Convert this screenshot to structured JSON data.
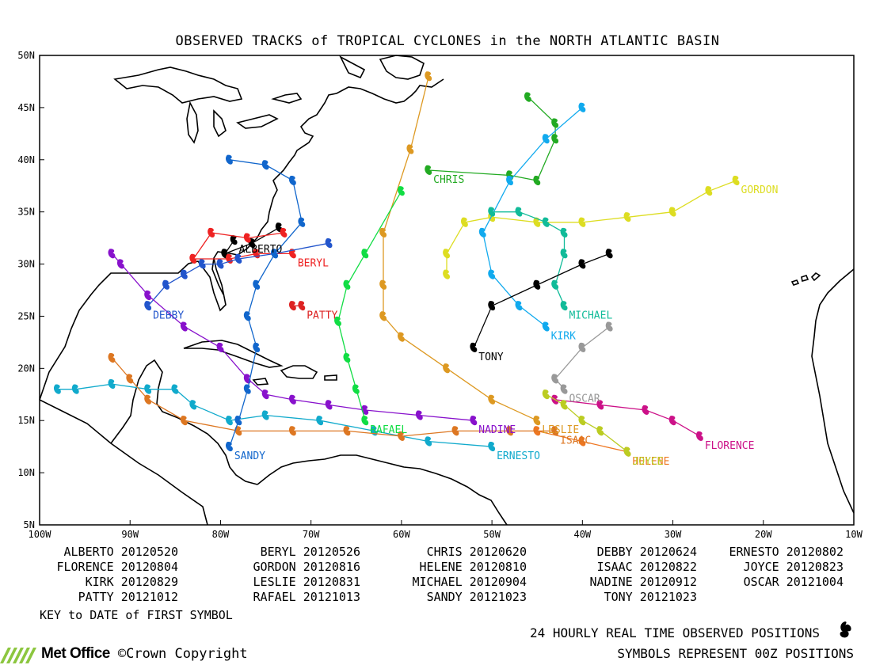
{
  "title": "OBSERVED TRACKS of TROPICAL CYCLONES in the NORTH ATLANTIC BASIN",
  "lat_ticks": [
    "50N",
    "45N",
    "40N",
    "35N",
    "30N",
    "25N",
    "20N",
    "15N",
    "10N",
    "5N"
  ],
  "lon_ticks": [
    "100W",
    "90W",
    "80W",
    "70W",
    "60W",
    "50W",
    "40W",
    "30W",
    "20W",
    "10W"
  ],
  "legend": [
    {
      "name": "ALBERTO",
      "date": "20120520"
    },
    {
      "name": "BERYL",
      "date": "20120526"
    },
    {
      "name": "CHRIS",
      "date": "20120620"
    },
    {
      "name": "DEBBY",
      "date": "20120624"
    },
    {
      "name": "ERNESTO",
      "date": "20120802"
    },
    {
      "name": "FLORENCE",
      "date": "20120804"
    },
    {
      "name": "GORDON",
      "date": "20120816"
    },
    {
      "name": "HELENE",
      "date": "20120810"
    },
    {
      "name": "ISAAC",
      "date": "20120822"
    },
    {
      "name": "JOYCE",
      "date": "20120823"
    },
    {
      "name": "KIRK",
      "date": "20120829"
    },
    {
      "name": "LESLIE",
      "date": "20120831"
    },
    {
      "name": "MICHAEL",
      "date": "20120904"
    },
    {
      "name": "NADINE",
      "date": "20120912"
    },
    {
      "name": "OSCAR",
      "date": "20121004"
    },
    {
      "name": "PATTY",
      "date": "20121012"
    },
    {
      "name": "RAFAEL",
      "date": "20121013"
    },
    {
      "name": "SANDY",
      "date": "20121023"
    },
    {
      "name": "TONY",
      "date": "20121023"
    }
  ],
  "key_text": "KEY to DATE of FIRST SYMBOL",
  "footer_line1": "24 HOURLY REAL TIME OBSERVED POSITIONS",
  "footer_line2": "SYMBOLS REPRESENT 00Z POSITIONS",
  "brand": "Met Office",
  "copyright": "©Crown Copyright",
  "colors": {
    "ALBERTO": "#000000",
    "BERYL": "#ee2222",
    "CHRIS": "#22aa22",
    "DEBBY": "#2255cc",
    "ERNESTO": "#11aacc",
    "FLORENCE": "#cc1188",
    "GORDON": "#dddd22",
    "HELENE": "#ee7722",
    "ISAAC": "#dd7722",
    "JOYCE": "#bbcc22",
    "KIRK": "#11aaee",
    "LESLIE": "#dd9922",
    "MICHAEL": "#11bb99",
    "NADINE": "#8811cc",
    "OSCAR": "#999999",
    "PATTY": "#dd2222",
    "RAFAEL": "#11dd44",
    "SANDY": "#1166cc",
    "TONY": "#000000"
  },
  "tracks": [
    {
      "name": "ALBERTO",
      "points": [
        [
          -78.5,
          32.3
        ],
        [
          -79.5,
          31.0
        ],
        [
          -76.5,
          32.0
        ],
        [
          -73.5,
          33.5
        ]
      ]
    },
    {
      "name": "BERYL",
      "points": [
        [
          -72,
          31
        ],
        [
          -76,
          31
        ],
        [
          -79,
          30.5
        ],
        [
          -83,
          30.5
        ],
        [
          -81,
          33
        ],
        [
          -77,
          32.5
        ],
        [
          -73,
          33
        ]
      ]
    },
    {
      "name": "CHRIS",
      "points": [
        [
          -57,
          39
        ],
        [
          -48,
          38.5
        ],
        [
          -45,
          38
        ],
        [
          -43,
          42
        ],
        [
          -43,
          43.5
        ],
        [
          -46,
          46
        ]
      ]
    },
    {
      "name": "DEBBY",
      "points": [
        [
          -88,
          26
        ],
        [
          -86,
          28
        ],
        [
          -84,
          29
        ],
        [
          -82,
          30
        ],
        [
          -80,
          30
        ],
        [
          -78,
          30.5
        ],
        [
          -74,
          31
        ],
        [
          -68,
          32
        ]
      ]
    },
    {
      "name": "ERNESTO",
      "points": [
        [
          -50,
          12.5
        ],
        [
          -57,
          13
        ],
        [
          -63,
          14
        ],
        [
          -69,
          15
        ],
        [
          -75,
          15.5
        ],
        [
          -79,
          15
        ],
        [
          -83,
          16.5
        ],
        [
          -85,
          18
        ],
        [
          -88,
          18
        ],
        [
          -92,
          18.5
        ],
        [
          -96,
          18
        ],
        [
          -98,
          18
        ]
      ]
    },
    {
      "name": "FLORENCE",
      "points": [
        [
          -27,
          13.5
        ],
        [
          -30,
          15
        ],
        [
          -33,
          16
        ],
        [
          -38,
          16.5
        ],
        [
          -43,
          17
        ]
      ]
    },
    {
      "name": "GORDON",
      "points": [
        [
          -23,
          38
        ],
        [
          -26,
          37
        ],
        [
          -30,
          35
        ],
        [
          -35,
          34.5
        ],
        [
          -40,
          34
        ],
        [
          -45,
          34
        ],
        [
          -50,
          34.5
        ],
        [
          -53,
          34
        ],
        [
          -55,
          31
        ],
        [
          -55,
          29
        ]
      ]
    },
    {
      "name": "HELENE",
      "points": [
        [
          -35,
          12
        ],
        [
          -40,
          13
        ],
        [
          -45,
          14
        ]
      ]
    },
    {
      "name": "ISAAC",
      "points": [
        [
          -43,
          14
        ],
        [
          -48,
          14
        ],
        [
          -54,
          14
        ],
        [
          -60,
          13.5
        ],
        [
          -66,
          14
        ],
        [
          -72,
          14
        ],
        [
          -78,
          14
        ],
        [
          -84,
          15
        ],
        [
          -88,
          17
        ],
        [
          -90,
          19
        ],
        [
          -92,
          21
        ]
      ]
    },
    {
      "name": "JOYCE",
      "points": [
        [
          -35,
          12
        ],
        [
          -38,
          14
        ],
        [
          -40,
          15
        ],
        [
          -42,
          16.5
        ],
        [
          -44,
          17.5
        ]
      ]
    },
    {
      "name": "KIRK",
      "points": [
        [
          -44,
          24
        ],
        [
          -47,
          26
        ],
        [
          -50,
          29
        ],
        [
          -51,
          33
        ],
        [
          -48,
          38
        ],
        [
          -44,
          42
        ],
        [
          -40,
          45
        ]
      ]
    },
    {
      "name": "LESLIE",
      "points": [
        [
          -45,
          15
        ],
        [
          -50,
          17
        ],
        [
          -55,
          20
        ],
        [
          -60,
          23
        ],
        [
          -62,
          25
        ],
        [
          -62,
          28
        ],
        [
          -62,
          33
        ],
        [
          -59,
          41
        ],
        [
          -57,
          48
        ]
      ]
    },
    {
      "name": "MICHAEL",
      "points": [
        [
          -42,
          26
        ],
        [
          -43,
          28
        ],
        [
          -42,
          31
        ],
        [
          -42,
          33
        ],
        [
          -44,
          34
        ],
        [
          -47,
          35
        ],
        [
          -50,
          35
        ]
      ]
    },
    {
      "name": "NADINE",
      "points": [
        [
          -52,
          15
        ],
        [
          -58,
          15.5
        ],
        [
          -64,
          16
        ],
        [
          -68,
          16.5
        ],
        [
          -72,
          17
        ],
        [
          -75,
          17.5
        ],
        [
          -77,
          19
        ],
        [
          -80,
          22
        ],
        [
          -84,
          24
        ],
        [
          -88,
          27
        ],
        [
          -91,
          30
        ],
        [
          -92,
          31
        ]
      ]
    },
    {
      "name": "OSCAR",
      "points": [
        [
          -42,
          18
        ],
        [
          -43,
          19
        ],
        [
          -40,
          22
        ],
        [
          -37,
          24
        ]
      ]
    },
    {
      "name": "PATTY",
      "points": [
        [
          -71,
          26
        ],
        [
          -72,
          26
        ]
      ]
    },
    {
      "name": "RAFAEL",
      "points": [
        [
          -64,
          15
        ],
        [
          -65,
          18
        ],
        [
          -66,
          21
        ],
        [
          -67,
          24.5
        ],
        [
          -66,
          28
        ],
        [
          -64,
          31
        ],
        [
          -60,
          37
        ]
      ]
    },
    {
      "name": "SANDY",
      "points": [
        [
          -79,
          12.5
        ],
        [
          -78,
          15
        ],
        [
          -77,
          18
        ],
        [
          -76,
          22
        ],
        [
          -77,
          25
        ],
        [
          -76,
          28
        ],
        [
          -74,
          31
        ],
        [
          -71,
          34
        ],
        [
          -72,
          38
        ],
        [
          -75,
          39.5
        ],
        [
          -79,
          40
        ]
      ]
    },
    {
      "name": "TONY",
      "points": [
        [
          -52,
          22
        ],
        [
          -50,
          26
        ],
        [
          -45,
          28
        ],
        [
          -40,
          30
        ],
        [
          -37,
          31
        ]
      ]
    }
  ]
}
